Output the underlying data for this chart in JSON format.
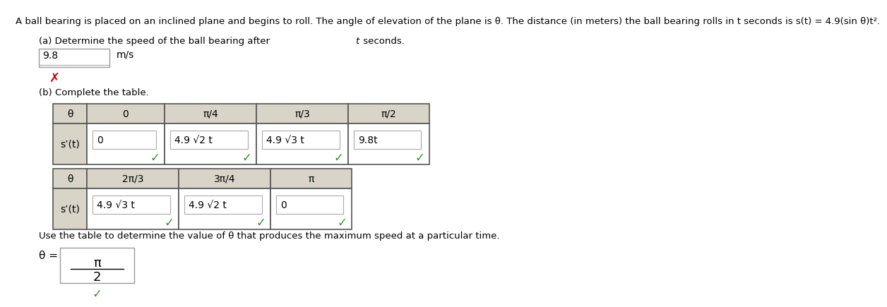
{
  "bg_color": "#ffffff",
  "text_color": "#000000",
  "header_bg": "#d8d5c8",
  "cell_bg": "#ffffff",
  "green_color": "#3a8a3a",
  "red_x_color": "#cc0000",
  "green_check": "✓",
  "red_x": "✗",
  "title": "A ball bearing is placed on an inclined plane and begins to roll. The angle of elevation of the plane is θ. The distance (in meters) the ball bearing rolls in t seconds is s(t) = 4.9(sin θ)t².",
  "part_a": "(a) Determine the speed of the ball bearing after t seconds.",
  "part_a_answer": "9.8",
  "part_a_unit": "m/s",
  "part_b": "(b) Complete the table.",
  "t1_headers": [
    "θ",
    "0",
    "π/4",
    "π/3",
    "π/2"
  ],
  "t1_row_label": "s’(t)",
  "t1_values": [
    "0",
    "4.9 √2 t",
    "4.9 √3 t",
    "9.8t"
  ],
  "t2_headers": [
    "θ",
    "2π/3",
    "3π/4",
    "π"
  ],
  "t2_row_label": "s’(t)",
  "t2_values": [
    "4.9 √3 t",
    "4.9 √2 t",
    "0"
  ],
  "final_sentence": "Use the table to determine the value of θ that produces the maximum speed at a particular time.",
  "final_theta_label": "θ =",
  "final_answer_num": "π",
  "final_answer_den": "2"
}
